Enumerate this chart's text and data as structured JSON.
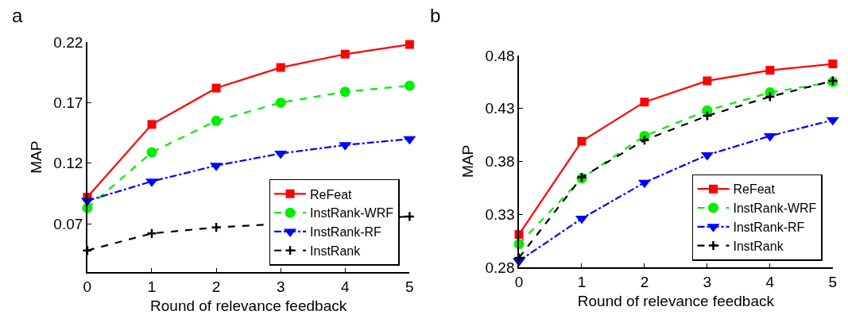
{
  "chart_data": [
    {
      "type": "line",
      "title": "a",
      "xlabel": "Round of relevance feedback",
      "ylabel": "MAP",
      "x": [
        0,
        1,
        2,
        3,
        4,
        5
      ],
      "xlim": [
        0,
        5
      ],
      "xticks": [
        0,
        1,
        2,
        3,
        4,
        5
      ],
      "ylim": [
        0.03,
        0.22
      ],
      "yticks": [
        0.07,
        0.12,
        0.17,
        0.22
      ],
      "grid": false,
      "legend": "bottom right",
      "series": [
        {
          "name": "ReFeat",
          "color": "#ff0000",
          "marker": "square",
          "line_style": "solid",
          "values": [
            0.092,
            0.152,
            0.182,
            0.199,
            0.21,
            0.218
          ]
        },
        {
          "name": "InstRank-WRF",
          "color": "#00ee00",
          "marker": "circle",
          "line_style": "dashed",
          "values": [
            0.083,
            0.129,
            0.155,
            0.17,
            0.179,
            0.184
          ]
        },
        {
          "name": "InstRank-RF",
          "color": "#0000ff",
          "marker": "triangle",
          "line_style": "dashdot",
          "values": [
            0.089,
            0.105,
            0.118,
            0.128,
            0.135,
            0.14
          ]
        },
        {
          "name": "InstRank",
          "color": "#000000",
          "marker": "cross",
          "line_style": "dashed",
          "values": [
            0.048,
            0.062,
            0.067,
            null,
            null,
            0.076
          ]
        }
      ]
    },
    {
      "type": "line",
      "title": "b",
      "xlabel": "Round of relevance feedback",
      "ylabel": "MAP",
      "x": [
        0,
        1,
        2,
        3,
        4,
        5
      ],
      "xlim": [
        0,
        5
      ],
      "xticks": [
        0,
        1,
        2,
        3,
        4,
        5
      ],
      "ylim": [
        0.28,
        0.48
      ],
      "yticks": [
        0.28,
        0.33,
        0.38,
        0.43,
        0.48
      ],
      "grid": false,
      "legend": "bottom right",
      "series": [
        {
          "name": "ReFeat",
          "color": "#ff0000",
          "marker": "square",
          "line_style": "solid",
          "values": [
            0.311,
            0.399,
            0.436,
            0.456,
            0.466,
            0.472
          ]
        },
        {
          "name": "InstRank-WRF",
          "color": "#00ee00",
          "marker": "circle",
          "line_style": "dashed",
          "values": [
            0.302,
            0.364,
            0.404,
            0.428,
            0.445,
            0.455
          ]
        },
        {
          "name": "InstRank-RF",
          "color": "#0000ff",
          "marker": "triangle",
          "line_style": "dashdot",
          "values": [
            0.286,
            0.326,
            0.36,
            0.386,
            0.404,
            0.419
          ]
        },
        {
          "name": "InstRank",
          "color": "#000000",
          "marker": "cross",
          "line_style": "dashed",
          "values": [
            0.289,
            0.365,
            0.4,
            0.423,
            0.441,
            0.456
          ]
        }
      ]
    }
  ]
}
